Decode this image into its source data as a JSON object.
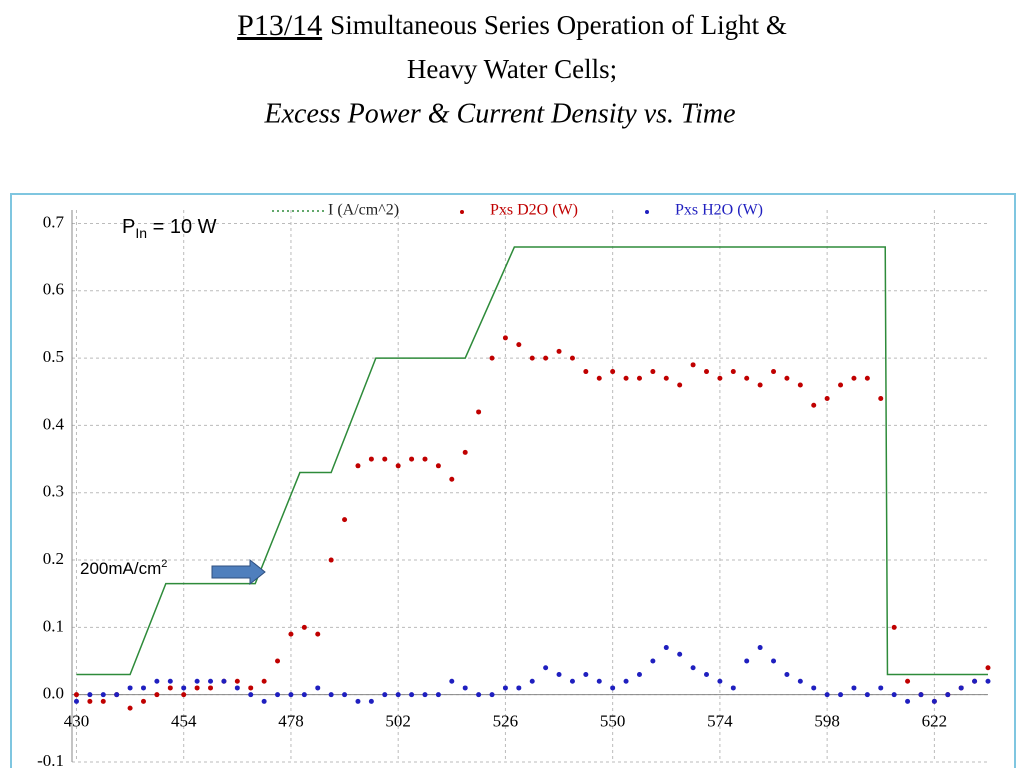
{
  "header": {
    "title_code": "P13/14",
    "title_rest": "Simultaneous Series Operation of Light &",
    "title_line2": "Heavy Water Cells;",
    "subtitle": "Excess Power & Current Density vs. Time"
  },
  "chart_data": {
    "type": "scatter",
    "annotations": {
      "pin_main": "P",
      "pin_sub": "In",
      "pin_rest": " = 10 W",
      "arrow_main": "200mA/cm",
      "arrow_sup": "2"
    },
    "xlim": [
      429,
      634
    ],
    "xticks": [
      430,
      454,
      478,
      502,
      526,
      550,
      574,
      598,
      622
    ],
    "ylim": [
      -0.1,
      0.72
    ],
    "yticks": [
      {
        "value": -0.1,
        "label": "-0.1"
      },
      {
        "value": 0,
        "label": "0.0"
      },
      0.1,
      0.2,
      0.3,
      0.4,
      0.5,
      0.6,
      0.7
    ],
    "grid": true,
    "legend": "top",
    "current": {
      "name": "I (A/cm^2)",
      "color": "#2e8b3a",
      "x": [
        430,
        442,
        450,
        470,
        480,
        487,
        497,
        517,
        528,
        611,
        611.5,
        634
      ],
      "values": [
        0.03,
        0.03,
        0.165,
        0.165,
        0.33,
        0.33,
        0.5,
        0.5,
        0.665,
        0.665,
        0.03,
        0.03
      ]
    },
    "x": [
      430,
      433,
      436,
      439,
      442,
      445,
      448,
      451,
      454,
      457,
      460,
      463,
      466,
      469,
      472,
      475,
      478,
      481,
      484,
      487,
      490,
      493,
      496,
      499,
      502,
      505,
      508,
      511,
      514,
      517,
      520,
      523,
      526,
      529,
      532,
      535,
      538,
      541,
      544,
      547,
      550,
      553,
      556,
      559,
      562,
      565,
      568,
      571,
      574,
      577,
      580,
      583,
      586,
      589,
      592,
      595,
      598,
      601,
      604,
      607,
      610,
      613,
      616,
      619,
      622,
      625,
      628,
      631,
      634
    ],
    "series": [
      {
        "name": "Pxs D2O (W)",
        "color": "#c00000",
        "values": [
          0.0,
          -0.01,
          -0.01,
          0.0,
          -0.02,
          -0.01,
          0.0,
          0.01,
          0.0,
          0.01,
          0.01,
          0.02,
          0.02,
          0.01,
          0.02,
          0.05,
          0.09,
          0.1,
          0.09,
          0.2,
          0.26,
          0.34,
          0.35,
          0.35,
          0.34,
          0.35,
          0.35,
          0.34,
          0.32,
          0.36,
          0.42,
          0.5,
          0.53,
          0.52,
          0.5,
          0.5,
          0.51,
          0.5,
          0.48,
          0.47,
          0.48,
          0.47,
          0.47,
          0.48,
          0.47,
          0.46,
          0.49,
          0.48,
          0.47,
          0.48,
          0.47,
          0.46,
          0.48,
          0.47,
          0.46,
          0.43,
          0.44,
          0.46,
          0.47,
          0.47,
          0.44,
          0.1,
          0.02,
          0.0,
          -0.01,
          0.0,
          0.01,
          0.02,
          0.04
        ]
      },
      {
        "name": "Pxs H2O (W)",
        "color": "#1f1fbf",
        "values": [
          -0.01,
          0.0,
          0.0,
          0.0,
          0.01,
          0.01,
          0.02,
          0.02,
          0.01,
          0.02,
          0.02,
          0.02,
          0.01,
          0.0,
          -0.01,
          0.0,
          0.0,
          0.0,
          0.01,
          0.0,
          0.0,
          -0.01,
          -0.01,
          0.0,
          0.0,
          0.0,
          0.0,
          0.0,
          0.02,
          0.01,
          0.0,
          0.0,
          0.01,
          0.01,
          0.02,
          0.04,
          0.03,
          0.02,
          0.03,
          0.02,
          0.01,
          0.02,
          0.03,
          0.05,
          0.07,
          0.06,
          0.04,
          0.03,
          0.02,
          0.01,
          0.05,
          0.07,
          0.05,
          0.03,
          0.02,
          0.01,
          0.0,
          0.0,
          0.01,
          0.0,
          0.01,
          0.0,
          -0.01,
          0.0,
          -0.01,
          0.0,
          0.01,
          0.02,
          0.02
        ]
      }
    ]
  }
}
